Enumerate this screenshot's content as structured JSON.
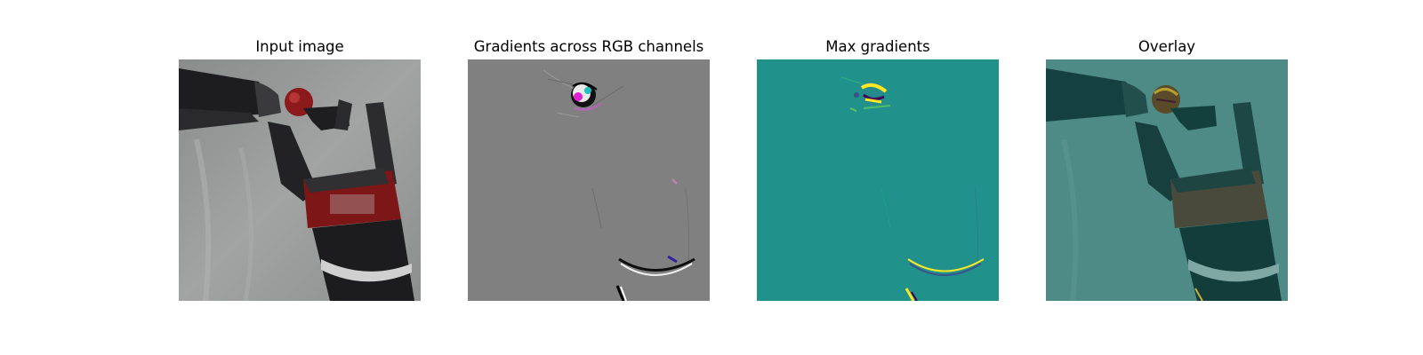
{
  "figure": {
    "panels": [
      {
        "id": "input",
        "title": "Input image"
      },
      {
        "id": "gradients-rgb",
        "title": "Gradients across RGB channels"
      },
      {
        "id": "max-gradients",
        "title": "Max gradients",
        "colormap_base": "#21918c",
        "colormap_high": "#fde725"
      },
      {
        "id": "overlay",
        "title": "Overlay"
      }
    ]
  }
}
